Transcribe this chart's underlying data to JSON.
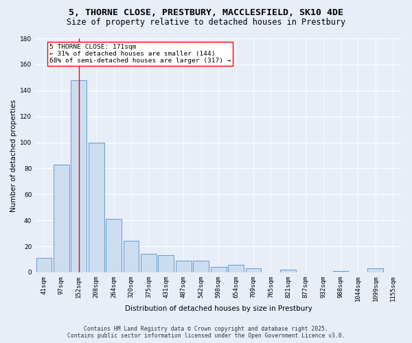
{
  "title_line1": "5, THORNE CLOSE, PRESTBURY, MACCLESFIELD, SK10 4DE",
  "title_line2": "Size of property relative to detached houses in Prestbury",
  "categories": [
    "41sqm",
    "97sqm",
    "152sqm",
    "208sqm",
    "264sqm",
    "320sqm",
    "375sqm",
    "431sqm",
    "487sqm",
    "542sqm",
    "598sqm",
    "654sqm",
    "709sqm",
    "765sqm",
    "821sqm",
    "877sqm",
    "932sqm",
    "988sqm",
    "1044sqm",
    "1099sqm",
    "1155sqm"
  ],
  "values": [
    11,
    83,
    148,
    100,
    41,
    24,
    14,
    13,
    9,
    9,
    4,
    6,
    3,
    0,
    2,
    0,
    0,
    1,
    0,
    3,
    0
  ],
  "bar_color": "#ccddf0",
  "bar_edge_color": "#6699cc",
  "ylabel": "Number of detached properties",
  "xlabel": "Distribution of detached houses by size in Prestbury",
  "ylim": [
    0,
    180
  ],
  "yticks": [
    0,
    20,
    40,
    60,
    80,
    100,
    120,
    140,
    160,
    180
  ],
  "red_line_x": 2,
  "annotation_text": "5 THORNE CLOSE: 171sqm\n← 31% of detached houses are smaller (144)\n68% of semi-detached houses are larger (317) →",
  "footer_line1": "Contains HM Land Registry data © Crown copyright and database right 2025.",
  "footer_line2": "Contains public sector information licensed under the Open Government Licence v3.0.",
  "bg_color": "#e8eef8",
  "plot_bg_color": "#e8eef8",
  "title_fontsize": 9.5,
  "subtitle_fontsize": 8.5,
  "axis_label_fontsize": 7.5,
  "tick_fontsize": 6.5,
  "annotation_fontsize": 6.8,
  "footer_fontsize": 5.8
}
